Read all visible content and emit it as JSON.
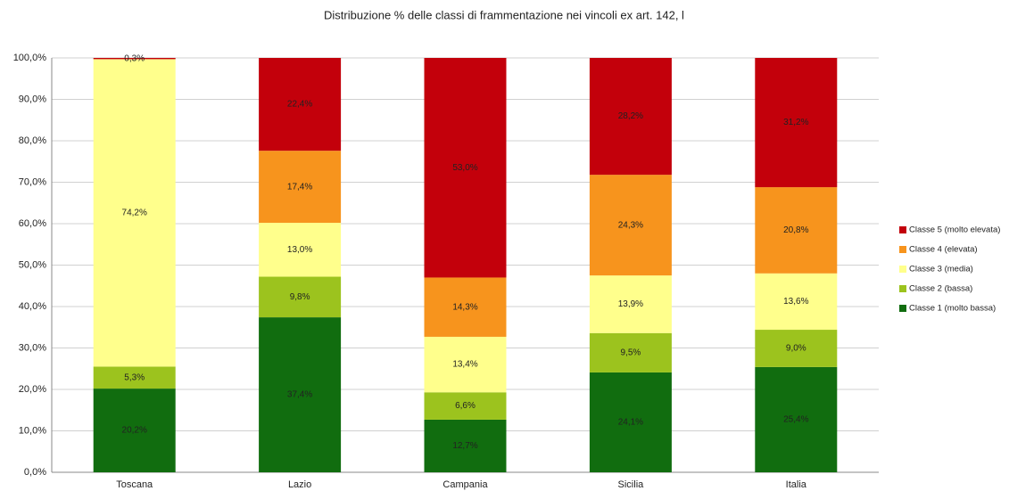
{
  "chart_data": {
    "type": "stacked_bar",
    "title": "Distribuzione % delle classi di frammentazione nei vincoli ex art. 142, l",
    "categories": [
      "Toscana",
      "Lazio",
      "Campania",
      "Sicilia",
      "Italia"
    ],
    "series": [
      {
        "name": "Classe 1 (molto bassa)",
        "color": "#116d0f",
        "values": [
          20.2,
          37.4,
          12.7,
          24.1,
          25.4
        ],
        "value_labels": [
          "20,2%",
          "37,4%",
          "12,7%",
          "24,1%",
          "25,4%"
        ]
      },
      {
        "name": "Classe 2 (bassa)",
        "color": "#9cc31e",
        "values": [
          5.3,
          9.8,
          6.6,
          9.5,
          9.0
        ],
        "value_labels": [
          "5,3%",
          "9,8%",
          "6,6%",
          "9,5%",
          "9,0%"
        ]
      },
      {
        "name": "Classe 3 (media)",
        "color": "#ffff8c",
        "values": [
          74.2,
          13.0,
          13.4,
          13.9,
          13.6
        ],
        "value_labels": [
          "74,2%",
          "13,0%",
          "13,4%",
          "13,9%",
          "13,6%"
        ]
      },
      {
        "name": "Classe 4 (elevata)",
        "color": "#f7941d",
        "values": [
          0,
          17.4,
          14.3,
          24.3,
          20.8
        ],
        "value_labels": [
          null,
          "17,4%",
          "14,3%",
          "24,3%",
          "20,8%"
        ]
      },
      {
        "name": "Classe 5 (molto elevata)",
        "color": "#c3000b",
        "values": [
          0.3,
          22.4,
          53.0,
          28.2,
          31.2
        ],
        "value_labels": [
          "0,3%",
          "22,4%",
          "53,0%",
          "28,2%",
          "31,2%"
        ]
      }
    ],
    "ylim": [
      0,
      100
    ],
    "yticks": [
      {
        "value": 0,
        "label": "0,0%"
      },
      {
        "value": 10,
        "label": "10,0%"
      },
      {
        "value": 20,
        "label": "20,0%"
      },
      {
        "value": 30,
        "label": "30,0%"
      },
      {
        "value": 40,
        "label": "40,0%"
      },
      {
        "value": 50,
        "label": "50,0%"
      },
      {
        "value": 60,
        "label": "60,0%"
      },
      {
        "value": 70,
        "label": "70,0%"
      },
      {
        "value": 80,
        "label": "80,0%"
      },
      {
        "value": 90,
        "label": "90,0%"
      },
      {
        "value": 100,
        "label": "100,0%"
      }
    ],
    "grid": true,
    "legend": "right"
  }
}
